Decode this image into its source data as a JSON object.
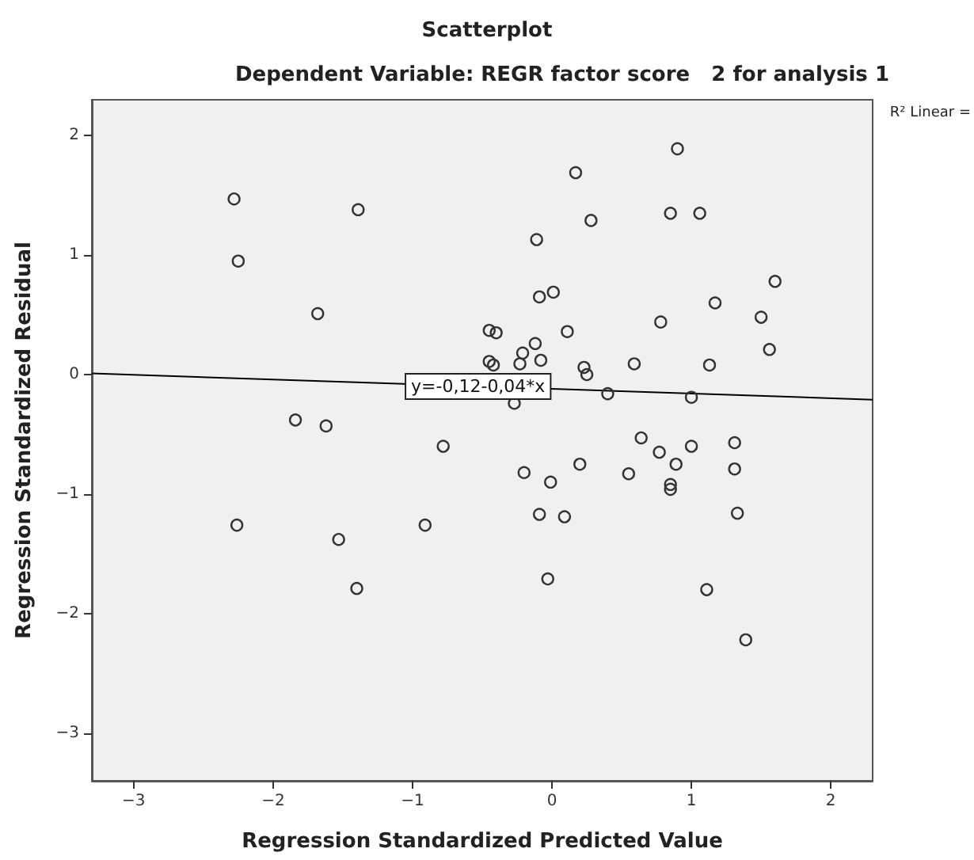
{
  "chart_data": {
    "type": "scatter",
    "title": "Scatterplot",
    "subtitle": "Dependent Variable: REGR factor score   2 for analysis 1",
    "xlabel": "Regression Standardized Predicted Value",
    "ylabel": "Regression Standardized Residual",
    "xlim": [
      -3.3,
      2.3
    ],
    "ylim": [
      -3.4,
      2.3
    ],
    "xticks": [
      -3,
      -2,
      -1,
      0,
      1,
      2
    ],
    "yticks": [
      -3,
      -2,
      -1,
      0,
      1,
      2
    ],
    "grid": false,
    "marker": "circle",
    "series": [
      {
        "color": "#333333",
        "x": [
          -2.28,
          -1.39,
          -2.25,
          -1.68,
          -1.84,
          -1.62,
          -0.78,
          -2.26,
          -0.91,
          -1.53,
          -1.4,
          -0.11,
          0.28,
          0.85,
          1.06,
          1.6,
          -0.09,
          0.01,
          1.17,
          1.5,
          0.78,
          1.56,
          0.11,
          -0.12,
          -0.21,
          -0.23,
          -0.08,
          0.23,
          0.25,
          0.59,
          1.13,
          0.4,
          1.0,
          -0.27,
          0.64,
          0.77,
          1.0,
          1.31,
          0.89,
          1.31,
          -0.2,
          -0.01,
          0.2,
          0.55,
          0.85,
          0.85,
          0.9,
          0.17,
          -0.45,
          -0.4,
          -0.45,
          -0.42,
          -0.09,
          0.09,
          -0.03,
          1.33,
          1.11,
          1.39
        ],
        "values": [
          1.47,
          1.38,
          0.95,
          0.51,
          -0.38,
          -0.43,
          -0.6,
          -1.26,
          -1.26,
          -1.38,
          -1.79,
          1.13,
          1.29,
          1.35,
          1.35,
          0.78,
          0.65,
          0.69,
          0.6,
          0.48,
          0.44,
          0.21,
          0.36,
          0.26,
          0.18,
          0.09,
          0.12,
          0.06,
          0.0,
          0.09,
          0.08,
          -0.16,
          -0.19,
          -0.24,
          -0.53,
          -0.65,
          -0.6,
          -0.57,
          -0.75,
          -0.79,
          -0.82,
          -0.9,
          -0.75,
          -0.83,
          -0.92,
          -0.96,
          1.89,
          1.69,
          0.37,
          0.35,
          0.11,
          0.08,
          -1.17,
          -1.19,
          -1.71,
          -1.16,
          -1.8,
          -2.22
        ]
      },
      {
        "type": "line",
        "color": "#000000",
        "marker": "none",
        "x": [
          -3.3,
          2.3
        ],
        "values": [
          0.01,
          -0.21
        ]
      }
    ],
    "annotations": [
      {
        "text": "y=-0,12-0,04*x",
        "x": -0.53,
        "y": -0.1
      },
      "R² Linear ="
    ]
  }
}
